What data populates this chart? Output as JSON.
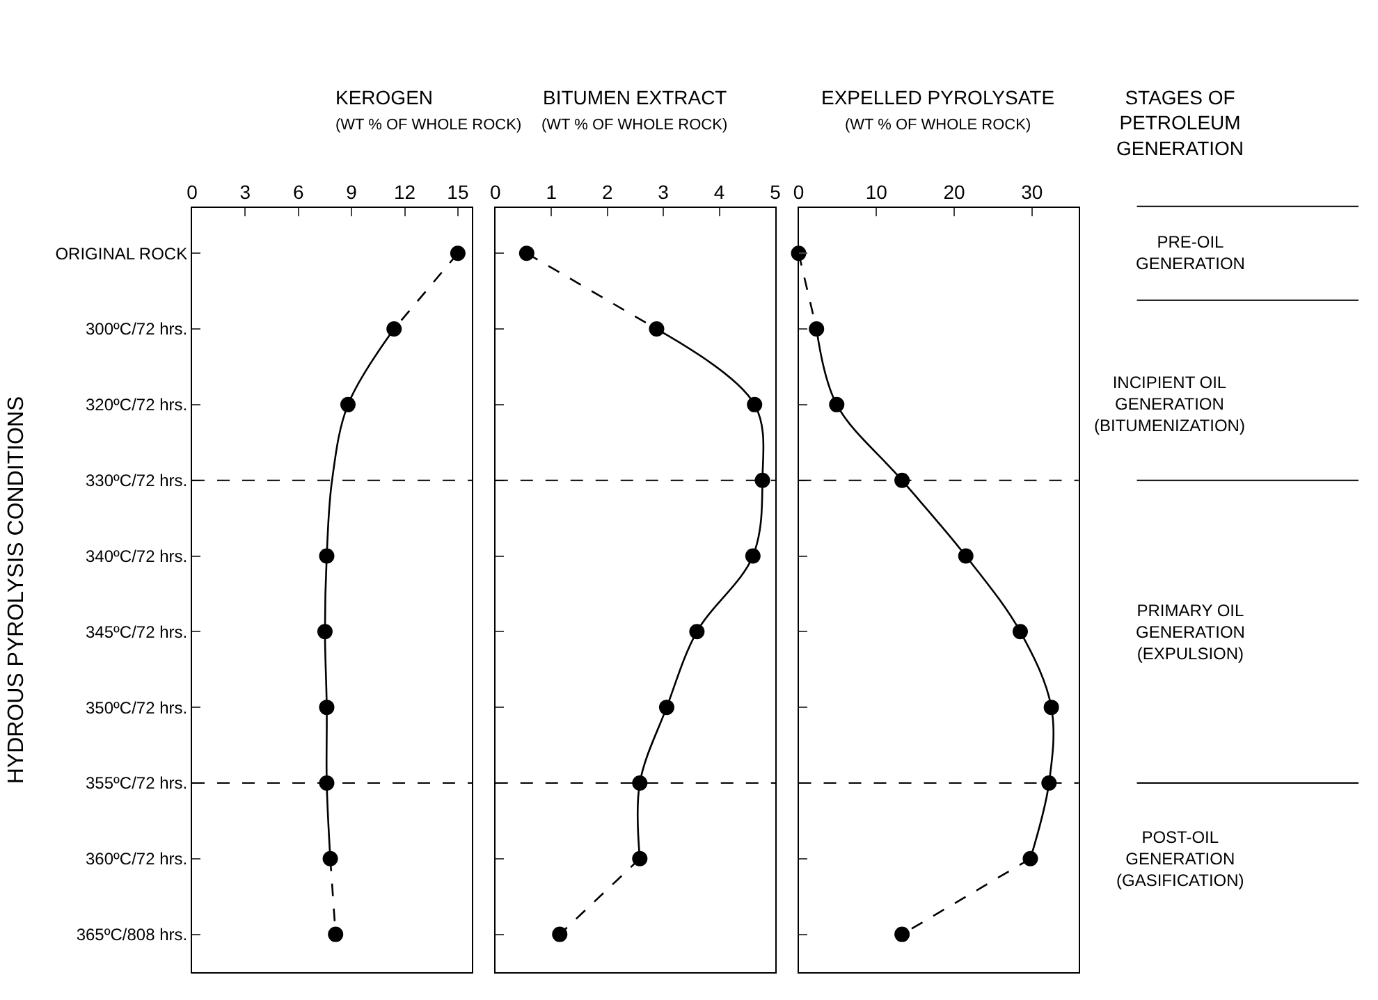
{
  "chart_data": [
    {
      "type": "line",
      "orientation": "horizontal",
      "title": "KEROGEN",
      "subtitle": "(WT % OF WHOLE ROCK)",
      "ylabel": "HYDROUS PYROLYSIS CONDITIONS",
      "categories": [
        "ORIGINAL ROCK",
        "300ºC/72 hrs.",
        "320ºC/72 hrs.",
        "330ºC/72 hrs.",
        "340ºC/72 hrs.",
        "345ºC/72 hrs.",
        "350ºC/72 hrs.",
        "355ºC/72 hrs.",
        "360ºC/72 hrs.",
        "365ºC/808 hrs."
      ],
      "xlim": [
        0,
        15.8
      ],
      "xticks": [
        0,
        3,
        6,
        9,
        12,
        15
      ],
      "series": [
        {
          "color": "#000000",
          "line_style": "dashed",
          "marker": "none",
          "values": [
            15,
            11.4,
            null,
            null,
            null,
            null,
            null,
            null,
            7.8,
            8.1
          ]
        },
        {
          "color": "#000000",
          "line_style": "solid",
          "marker": "none",
          "values": [
            null,
            11.4,
            8.8,
            7.9,
            7.6,
            7.5,
            7.6,
            7.6,
            7.8,
            null
          ]
        },
        {
          "type": "scatter",
          "color": "#000000",
          "marker": "circle",
          "values": [
            15,
            11.4,
            8.8,
            null,
            7.6,
            7.5,
            7.6,
            7.6,
            7.8,
            8.1
          ]
        }
      ],
      "ref_lines": [
        {
          "axis": "y",
          "value": "330ºC/72 hrs.",
          "line_style": "dashed",
          "color": "#000000"
        },
        {
          "axis": "y",
          "value": "355ºC/72 hrs.",
          "line_style": "dashed",
          "color": "#000000"
        }
      ]
    },
    {
      "type": "line",
      "orientation": "horizontal",
      "title": "BITUMEN EXTRACT",
      "subtitle": "(WT % OF WHOLE ROCK)",
      "categories": [
        "ORIGINAL ROCK",
        "300ºC/72 hrs.",
        "320ºC/72 hrs.",
        "330ºC/72 hrs.",
        "340ºC/72 hrs.",
        "345ºC/72 hrs.",
        "350ºC/72 hrs.",
        "355ºC/72 hrs.",
        "360ºC/72 hrs.",
        "365ºC/808 hrs."
      ],
      "xlim": [
        0,
        5
      ],
      "xticks": [
        0,
        1,
        2,
        3,
        4,
        5
      ],
      "tick_labels": "x",
      "series": [
        {
          "color": "#000000",
          "line_style": "dashed",
          "marker": "none",
          "values": [
            0.56,
            2.88,
            null,
            null,
            null,
            null,
            null,
            null,
            2.58,
            1.15
          ]
        },
        {
          "color": "#000000",
          "line_style": "solid",
          "marker": "none",
          "values": [
            null,
            2.88,
            4.63,
            4.77,
            4.6,
            3.6,
            3.06,
            2.58,
            2.58,
            null
          ]
        },
        {
          "type": "scatter",
          "color": "#000000",
          "marker": "circle",
          "values": [
            0.56,
            2.88,
            4.63,
            4.77,
            4.6,
            3.6,
            3.06,
            2.58,
            2.58,
            1.15
          ]
        }
      ],
      "ref_lines": [
        {
          "axis": "y",
          "value": "330ºC/72 hrs.",
          "line_style": "dashed",
          "color": "#000000"
        },
        {
          "axis": "y",
          "value": "355ºC/72 hrs.",
          "line_style": "dashed",
          "color": "#000000"
        }
      ]
    },
    {
      "type": "line",
      "orientation": "horizontal",
      "title": "EXPELLED PYROLYSATE",
      "subtitle": "(WT % OF WHOLE ROCK)",
      "categories": [
        "ORIGINAL ROCK",
        "300ºC/72 hrs.",
        "320ºC/72 hrs.",
        "330ºC/72 hrs.",
        "340ºC/72 hrs.",
        "345ºC/72 hrs.",
        "350ºC/72 hrs.",
        "355ºC/72 hrs.",
        "360ºC/72 hrs.",
        "365ºC/808 hrs."
      ],
      "xlim": [
        0,
        36
      ],
      "xticks": [
        0,
        10,
        20,
        30
      ],
      "tick_labels": "x",
      "series": [
        {
          "color": "#000000",
          "line_style": "dashed",
          "marker": "none",
          "values": [
            0,
            2.3,
            null,
            null,
            null,
            null,
            null,
            null,
            29.8,
            13.3
          ]
        },
        {
          "color": "#000000",
          "line_style": "solid",
          "marker": "none",
          "values": [
            null,
            2.3,
            4.9,
            13.3,
            21.5,
            28.5,
            32.5,
            32.2,
            29.8,
            null
          ]
        },
        {
          "type": "scatter",
          "color": "#000000",
          "marker": "circle",
          "values": [
            0,
            2.3,
            4.9,
            13.3,
            21.5,
            28.5,
            32.5,
            32.2,
            29.8,
            13.3
          ]
        }
      ],
      "ref_lines": [
        {
          "axis": "y",
          "value": "330ºC/72 hrs.",
          "line_style": "dashed",
          "color": "#000000"
        },
        {
          "axis": "y",
          "value": "355ºC/72 hrs.",
          "line_style": "dashed",
          "color": "#000000"
        }
      ]
    },
    {
      "type": "other",
      "title": "STAGES OF PETROLEUM GENERATION",
      "annotations": [
        "PRE-OIL GENERATION",
        "INCIPIENT OIL GENERATION (BITUMENIZATION)",
        "PRIMARY OIL GENERATION (EXPULSION)",
        "POST-OIL GENERATION (GASIFICATION)"
      ]
    }
  ]
}
